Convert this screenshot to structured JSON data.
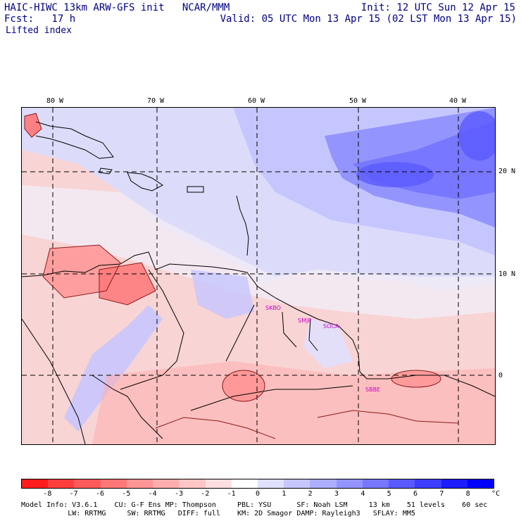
{
  "header": {
    "left_line1": "HAIC-HIWC 13km ARW-GFS init   NCAR/MMM",
    "left_line2": "Fcst:   17 h",
    "field": "Lifted index",
    "right_line1": "Init: 12 UTC Sun 12 Apr 15",
    "right_line2": "Valid: 05 UTC Mon 13 Apr 15 (02 LST Mon 13 Apr 15)"
  },
  "map": {
    "lon_labels": [
      "80 W",
      "70 W",
      "60 W",
      "50 W",
      "40 W"
    ],
    "lat_labels": [
      "20 N",
      "10 N",
      "0"
    ],
    "city_labels": [
      "SKBO",
      "SMJP",
      "SOCA",
      "SBBE"
    ],
    "colors": {
      "land_outline": "#000000",
      "contour": "#8b1a1a",
      "grid": "#000000"
    }
  },
  "colorbar": {
    "tick_labels": [
      "-8",
      "-7",
      "-6",
      "-5",
      "-4",
      "-3",
      "-2",
      "-1",
      "0",
      "1",
      "2",
      "3",
      "4",
      "5",
      "6",
      "7",
      "8"
    ],
    "unit": "°C",
    "colors": [
      "#ff1c1c",
      "#ff3d3d",
      "#ff5a5a",
      "#ff7777",
      "#ff9494",
      "#ffadad",
      "#ffc6c6",
      "#ffe0e0",
      "#ffffff",
      "#e0e0ff",
      "#c6c6ff",
      "#adadff",
      "#9494ff",
      "#7777ff",
      "#5a5aff",
      "#3d3dff",
      "#1c1cff",
      "#0000ff"
    ]
  },
  "footer": {
    "line1": "Model Info: V3.6.1    CU: G-F Ens MP: Thompson     PBL: YSU      SF: Noah LSM     13 km    51 levels    60 sec",
    "line2": "           LW: RRTMG     SW: RRTMG   DIFF: full    KM: 2D Smagor DAMP: Rayleigh3   SFLAY: MM5"
  }
}
